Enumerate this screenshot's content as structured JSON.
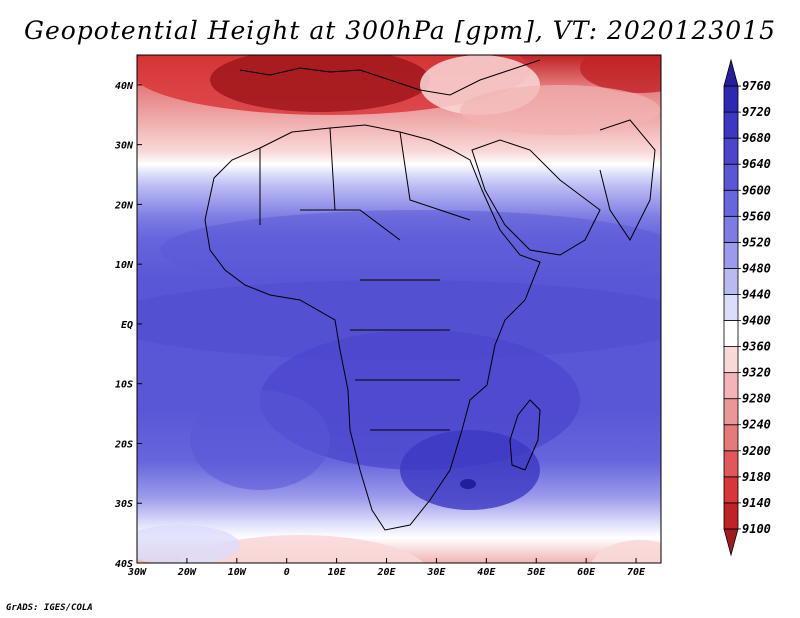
{
  "title": "Geopotential Height at 300hPa [gpm], VT: 2020123015",
  "footer": "GrADS: IGES/COLA",
  "colors": {
    "ocean_blue": "#5a57d6",
    "deep_blue": "#3c38c2",
    "land_blue": "#4a45cc",
    "coast_line": "#000000"
  },
  "chart_data": {
    "type": "heatmap",
    "title": "Geopotential Height at 300hPa [gpm], VT: 2020123015",
    "variable": "Geopotential Height",
    "level": "300hPa",
    "units": "gpm",
    "valid_time": "2020123015",
    "lon_range": [
      -30,
      75
    ],
    "lat_range": [
      -40,
      45
    ],
    "x_ticks": [
      "30W",
      "20W",
      "10W",
      "0",
      "10E",
      "20E",
      "30E",
      "40E",
      "50E",
      "60E",
      "70E"
    ],
    "y_ticks": [
      "40S",
      "30S",
      "20S",
      "10S",
      "EQ",
      "10N",
      "20N",
      "30N",
      "40N"
    ],
    "colorbar": {
      "levels": [
        9100,
        9140,
        9180,
        9200,
        9240,
        9280,
        9320,
        9360,
        9400,
        9440,
        9480,
        9520,
        9560,
        9600,
        9640,
        9680,
        9720,
        9760
      ],
      "colors": [
        "#a31a1e",
        "#c02226",
        "#d8373a",
        "#e0585a",
        "#e47a7a",
        "#eb9797",
        "#f2b4b4",
        "#f9d8d8",
        "#ffffff",
        "#dcdcfb",
        "#babaf3",
        "#9b9aeb",
        "#7d7ce3",
        "#6766dc",
        "#5a57d6",
        "#4a45cc",
        "#3c38c2",
        "#2e29b5",
        "#241d9c"
      ]
    }
  }
}
